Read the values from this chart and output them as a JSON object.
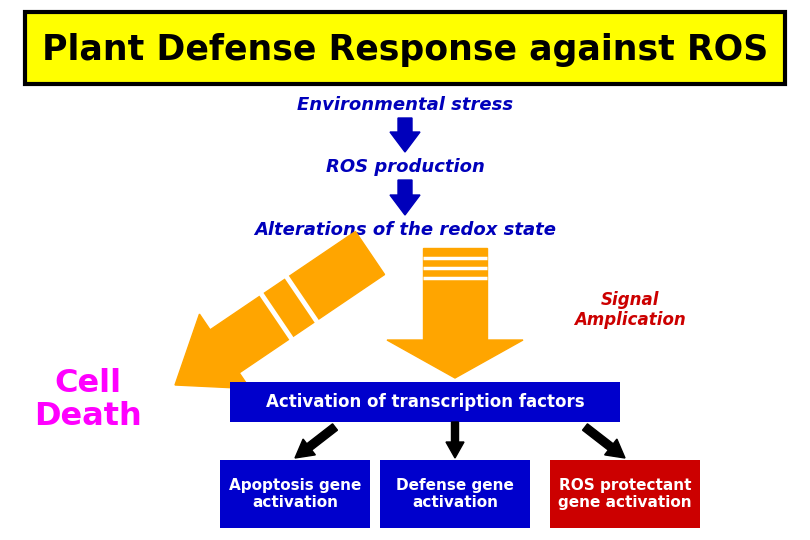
{
  "title": "Plant Defense Response against ROS",
  "title_bg": "#FFFF00",
  "title_border": "#000000",
  "title_color": "#000000",
  "env_stress": "Environmental stress",
  "ros_production": "ROS production",
  "redox_state": "Alterations of the redox state",
  "signal_amplification": "Signal\nAmplication",
  "cell_death": "Cell\nDeath",
  "transcription_box": "Activation of transcription factors",
  "transcription_bg": "#0000CC",
  "transcription_color": "#FFFFFF",
  "box1_text": "Apoptosis gene\nactivation",
  "box2_text": "Defense gene\nactivation",
  "box3_text": "ROS protectant\ngene activation",
  "box1_bg": "#0000CC",
  "box2_bg": "#0000CC",
  "box3_bg": "#CC0000",
  "box_text_color": "#FFFFFF",
  "blue_arrow_color": "#0000BB",
  "orange_color": "#FFA500",
  "white_color": "#FFFFFF",
  "cell_death_color": "#FF00FF",
  "signal_color": "#CC0000",
  "flow_label_color": "#0000BB",
  "black_color": "#000000",
  "background": "#FFFFFF"
}
